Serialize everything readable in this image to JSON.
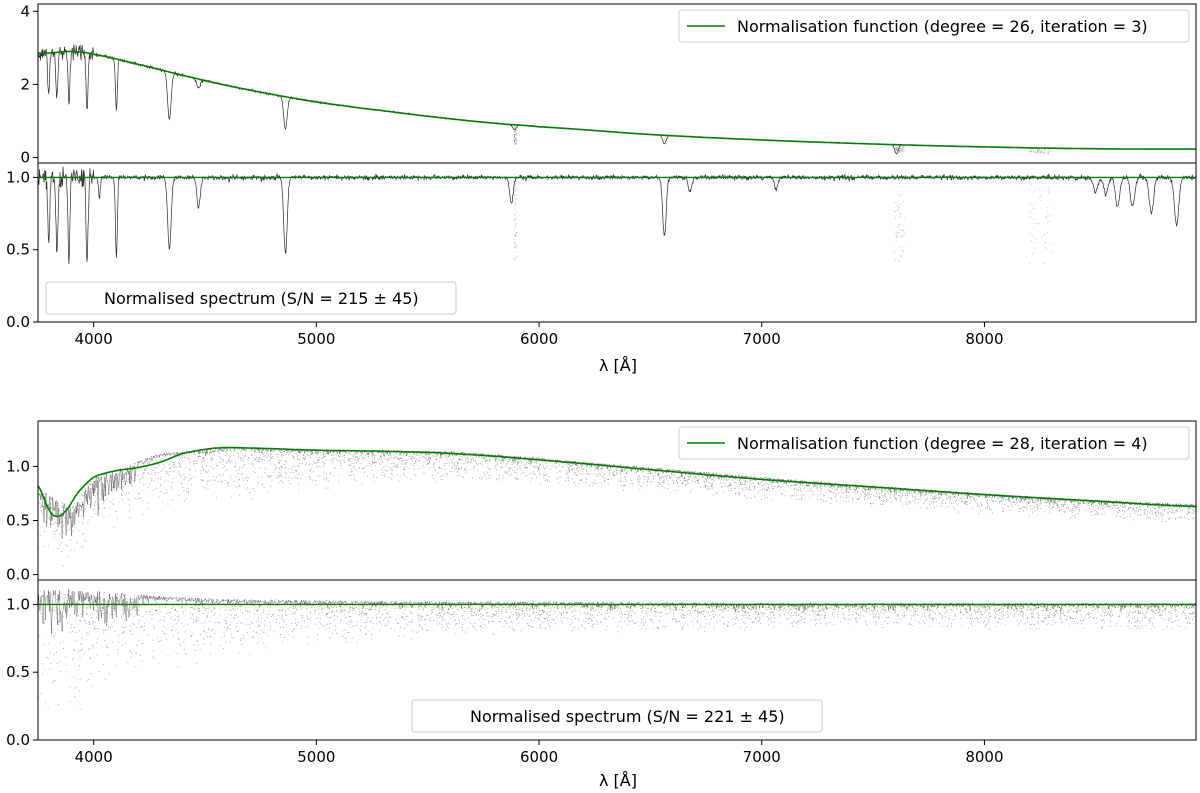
{
  "chart_data": [
    {
      "type": "line",
      "panel": "top-figure-upper",
      "title": "",
      "xlabel": "",
      "ylabel": "",
      "xlim": [
        3750,
        8950
      ],
      "ylim": [
        -0.15,
        4.2
      ],
      "yticks": [
        0,
        2,
        4
      ],
      "ytick_labels": [
        "0",
        "2",
        "4"
      ],
      "grid": false,
      "legend_position": "upper-right",
      "series": [
        {
          "name": "Normalisation function (degree = 26, iteration = 3)",
          "color": "#008000",
          "kind": "smooth-curve",
          "x": [
            3780,
            3900,
            4000,
            4200,
            4400,
            4600,
            4800,
            5000,
            5200,
            5500,
            5800,
            6000,
            6500,
            7000,
            7500,
            8000,
            8500,
            8900
          ],
          "y": [
            2.85,
            2.9,
            2.82,
            2.55,
            2.25,
            1.97,
            1.73,
            1.52,
            1.35,
            1.13,
            0.94,
            0.84,
            0.63,
            0.48,
            0.37,
            0.29,
            0.24,
            0.23
          ]
        },
        {
          "name": "",
          "color": "#000000",
          "kind": "spectrum",
          "absorption_lines": [
            {
              "x": 3798,
              "y": 1.8
            },
            {
              "x": 3835,
              "y": 1.6
            },
            {
              "x": 3889,
              "y": 1.5
            },
            {
              "x": 3970,
              "y": 1.3
            },
            {
              "x": 4102,
              "y": 1.3
            },
            {
              "x": 4340,
              "y": 1.05
            },
            {
              "x": 4471,
              "y": 1.9
            },
            {
              "x": 4861,
              "y": 0.78
            },
            {
              "x": 5890,
              "y": 0.76
            },
            {
              "x": 6563,
              "y": 0.38
            },
            {
              "x": 7605,
              "y": 0.1
            }
          ]
        }
      ]
    },
    {
      "type": "line",
      "panel": "top-figure-lower",
      "title": "",
      "xlabel": "λ [Å]",
      "ylabel": "",
      "xlim": [
        3750,
        8950
      ],
      "ylim": [
        0.0,
        1.1
      ],
      "xticks": [
        4000,
        5000,
        6000,
        7000,
        8000
      ],
      "xtick_labels": [
        "4000",
        "5000",
        "6000",
        "7000",
        "8000"
      ],
      "yticks": [
        0.0,
        0.5,
        1.0
      ],
      "ytick_labels": [
        "0.0",
        "0.5",
        "1.0"
      ],
      "grid": false,
      "legend_position": "lower-left",
      "series": [
        {
          "name": "Normalised spectrum (S/N = 215 ±  45)",
          "color": "#000000",
          "kind": "spectrum",
          "continuum": 1.0,
          "absorption_lines": [
            {
              "x": 3798,
              "y": 0.55
            },
            {
              "x": 3835,
              "y": 0.47
            },
            {
              "x": 3889,
              "y": 0.44
            },
            {
              "x": 3970,
              "y": 0.44
            },
            {
              "x": 4026,
              "y": 0.85
            },
            {
              "x": 4102,
              "y": 0.45
            },
            {
              "x": 4340,
              "y": 0.5
            },
            {
              "x": 4471,
              "y": 0.8
            },
            {
              "x": 4861,
              "y": 0.47
            },
            {
              "x": 5876,
              "y": 0.82
            },
            {
              "x": 6563,
              "y": 0.6
            },
            {
              "x": 6678,
              "y": 0.9
            },
            {
              "x": 7065,
              "y": 0.92
            },
            {
              "x": 8498,
              "y": 0.9
            },
            {
              "x": 8545,
              "y": 0.88
            },
            {
              "x": 8598,
              "y": 0.8
            },
            {
              "x": 8665,
              "y": 0.8
            },
            {
              "x": 8750,
              "y": 0.75
            },
            {
              "x": 8863,
              "y": 0.67
            }
          ]
        },
        {
          "name": "",
          "color": "#008000",
          "kind": "flat-line",
          "x": [
            3750,
            8950
          ],
          "y": [
            1.0,
            1.0
          ]
        }
      ]
    },
    {
      "type": "line",
      "panel": "bottom-figure-upper",
      "title": "",
      "xlabel": "",
      "ylabel": "",
      "xlim": [
        3750,
        8950
      ],
      "ylim": [
        -0.05,
        1.42
      ],
      "yticks": [
        0.0,
        0.5,
        1.0
      ],
      "ytick_labels": [
        "0.0",
        "0.5",
        "1.0"
      ],
      "grid": false,
      "legend_position": "upper-right",
      "series": [
        {
          "name": "Normalisation function (degree = 28, iteration = 4)",
          "color": "#008000",
          "kind": "smooth-curve",
          "x": [
            3750,
            3800,
            3830,
            3870,
            3930,
            4000,
            4100,
            4200,
            4300,
            4400,
            4550,
            4700,
            5000,
            5300,
            5600,
            6000,
            6500,
            7000,
            7500,
            8000,
            8500,
            8950
          ],
          "y": [
            0.82,
            0.6,
            0.54,
            0.58,
            0.76,
            0.9,
            0.96,
            0.99,
            1.04,
            1.12,
            1.17,
            1.17,
            1.15,
            1.14,
            1.12,
            1.06,
            0.97,
            0.88,
            0.81,
            0.74,
            0.68,
            0.63
          ]
        },
        {
          "name": "",
          "color": "#000000",
          "kind": "noisy-spectrum",
          "scatter_envelope": {
            "x": [
              3750,
              3900,
              4000,
              4300,
              4600,
              5000,
              5600,
              6000,
              6500,
              7000,
              7500,
              8000,
              8500,
              8950
            ],
            "lower": [
              0.05,
              0.05,
              0.35,
              0.55,
              0.65,
              0.75,
              0.85,
              0.82,
              0.75,
              0.68,
              0.62,
              0.55,
              0.5,
              0.45
            ],
            "upper": [
              0.8,
              0.62,
              0.9,
              1.12,
              1.18,
              1.16,
              1.14,
              1.08,
              0.99,
              0.9,
              0.82,
              0.75,
              0.69,
              0.65
            ]
          }
        }
      ]
    },
    {
      "type": "line",
      "panel": "bottom-figure-lower",
      "title": "",
      "xlabel": "λ [Å]",
      "ylabel": "",
      "xlim": [
        3750,
        8950
      ],
      "ylim": [
        0.0,
        1.18
      ],
      "xticks": [
        4000,
        5000,
        6000,
        7000,
        8000
      ],
      "xtick_labels": [
        "4000",
        "5000",
        "6000",
        "7000",
        "8000"
      ],
      "yticks": [
        0.0,
        0.5,
        1.0
      ],
      "ytick_labels": [
        "0.0",
        "0.5",
        "1.0"
      ],
      "grid": false,
      "legend_position": "lower-center",
      "series": [
        {
          "name": "Normalised spectrum (S/N = 221 ±  45)",
          "color": "#000000",
          "kind": "noisy-spectrum",
          "continuum": 1.0,
          "scatter_envelope": {
            "x": [
              3750,
              3900,
              4000,
              4300,
              4600,
              5000,
              5600,
              6000,
              7000,
              8000,
              8950
            ],
            "lower": [
              0.05,
              0.05,
              0.35,
              0.5,
              0.6,
              0.68,
              0.75,
              0.78,
              0.8,
              0.8,
              0.8
            ],
            "upper": [
              1.1,
              1.12,
              1.1,
              1.06,
              1.04,
              1.03,
              1.02,
              1.02,
              1.01,
              1.01,
              1.01
            ]
          }
        },
        {
          "name": "",
          "color": "#008000",
          "kind": "flat-line",
          "x": [
            3750,
            8950
          ],
          "y": [
            1.0,
            1.0
          ]
        }
      ]
    }
  ]
}
